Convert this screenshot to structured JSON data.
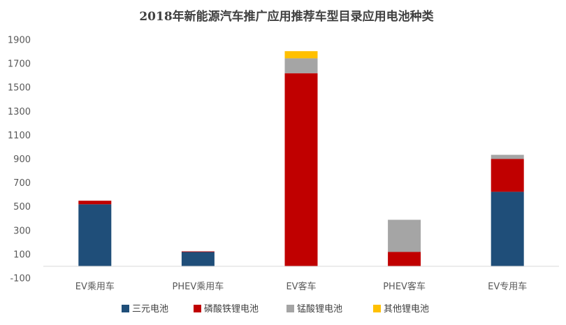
{
  "chart_data": {
    "type": "bar",
    "stacked": true,
    "title": "2018年新能源汽车推广应用推荐车型目录应用电池种类",
    "xlabel": "",
    "ylabel": "",
    "categories": [
      "EV乘用车",
      "PHEV乘用车",
      "EV客车",
      "PHEV客车",
      "EV专用车"
    ],
    "series": [
      {
        "name": "三元电池",
        "color": "#1f4e79",
        "values": [
          520,
          120,
          0,
          0,
          625
        ]
      },
      {
        "name": "磷酸铁锂电池",
        "color": "#c00000",
        "values": [
          30,
          5,
          1620,
          120,
          275
        ]
      },
      {
        "name": "锰酸锂电池",
        "color": "#a5a5a5",
        "values": [
          0,
          0,
          125,
          270,
          35
        ]
      },
      {
        "name": "其他锂电池",
        "color": "#ffc000",
        "values": [
          0,
          0,
          60,
          0,
          0
        ]
      }
    ],
    "ylim": [
      -100,
      1900
    ],
    "yticks": [
      -100,
      100,
      300,
      500,
      700,
      900,
      1100,
      1300,
      1500,
      1700,
      1900
    ],
    "grid": false,
    "legend_position": "bottom"
  }
}
